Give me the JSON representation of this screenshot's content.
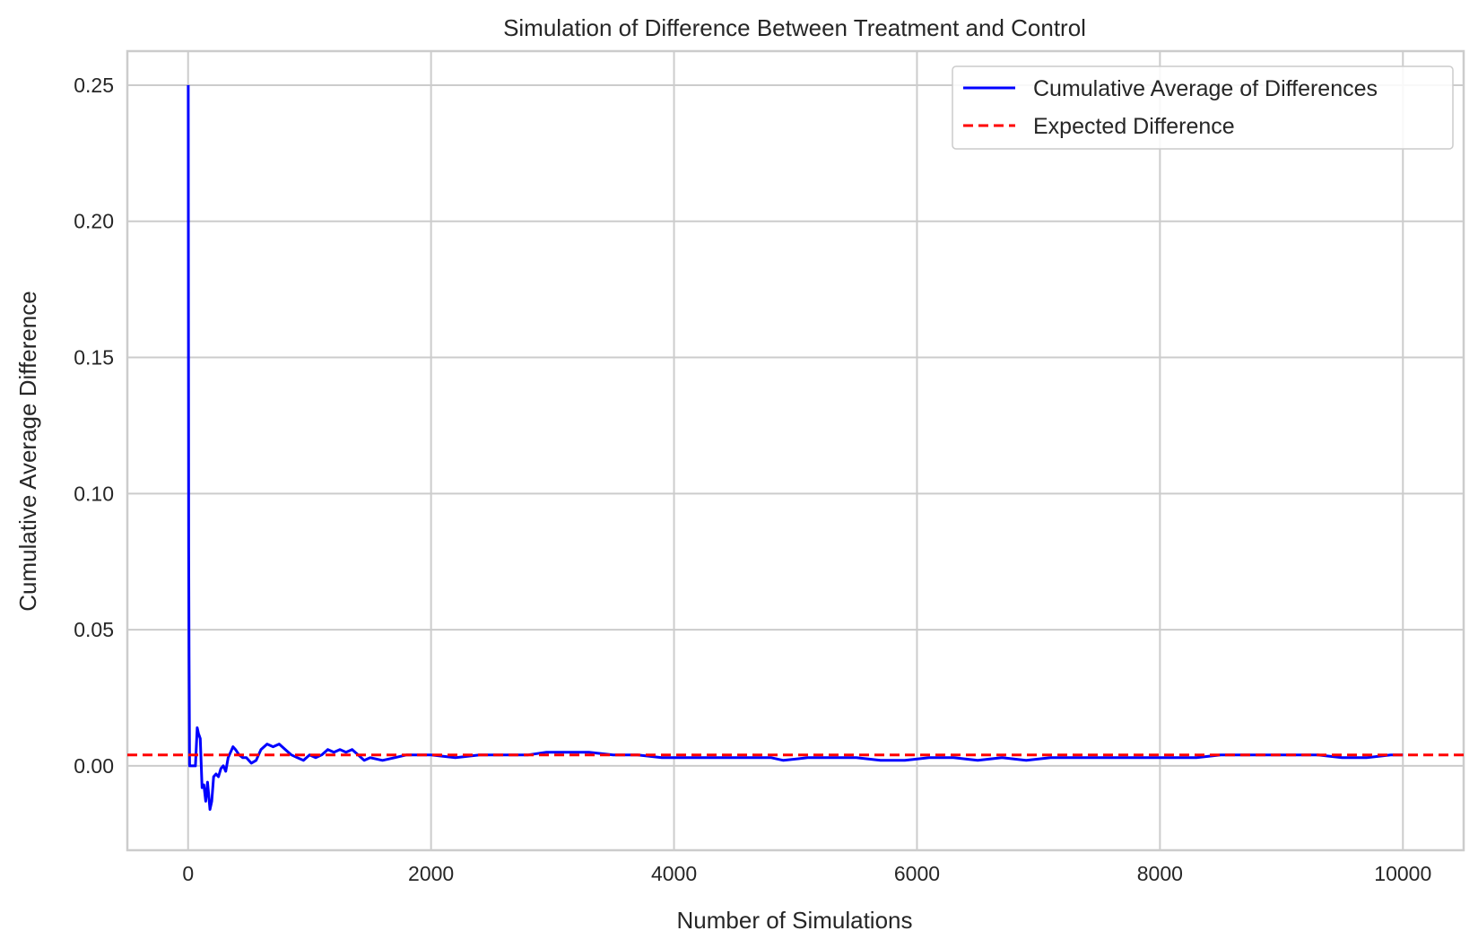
{
  "chart_data": {
    "type": "line",
    "title": "Simulation of Difference Between Treatment and Control",
    "xlabel": "Number of Simulations",
    "ylabel": "Cumulative Average Difference",
    "xlim": [
      -500,
      10500
    ],
    "ylim": [
      -0.031,
      0.2625
    ],
    "xticks": [
      0,
      2000,
      4000,
      6000,
      8000,
      10000
    ],
    "xtick_labels": [
      "0",
      "2000",
      "4000",
      "6000",
      "8000",
      "10000"
    ],
    "yticks": [
      0.0,
      0.05,
      0.1,
      0.15,
      0.2,
      0.25
    ],
    "ytick_labels": [
      "0.00",
      "0.05",
      "0.10",
      "0.15",
      "0.20",
      "0.25"
    ],
    "grid": true,
    "legend_position": "top-right",
    "series": [
      {
        "name": "Cumulative Average of Differences",
        "color": "#0000ff",
        "style": "solid",
        "x": [
          1,
          3,
          5,
          8,
          12,
          20,
          30,
          45,
          60,
          75,
          85,
          100,
          115,
          130,
          145,
          160,
          170,
          180,
          195,
          210,
          230,
          250,
          270,
          290,
          310,
          330,
          350,
          370,
          390,
          420,
          450,
          480,
          520,
          560,
          600,
          650,
          700,
          750,
          800,
          850,
          900,
          950,
          1000,
          1050,
          1100,
          1150,
          1200,
          1250,
          1300,
          1350,
          1400,
          1450,
          1500,
          1600,
          1700,
          1800,
          1900,
          2000,
          2200,
          2400,
          2600,
          2800,
          2950,
          3100,
          3300,
          3500,
          3700,
          3900,
          4000,
          4200,
          4400,
          4600,
          4800,
          4900,
          5100,
          5300,
          5500,
          5700,
          5900,
          6100,
          6300,
          6500,
          6700,
          6900,
          7100,
          7300,
          7500,
          7700,
          7900,
          8100,
          8300,
          8500,
          8700,
          8900,
          9100,
          9300,
          9500,
          9700,
          9900,
          10000
        ],
        "y": [
          0.25,
          0.17,
          0.08,
          0.04,
          0.0,
          0.0,
          0.0,
          0.0,
          0.0,
          0.014,
          0.012,
          0.01,
          -0.008,
          -0.007,
          -0.013,
          -0.006,
          -0.011,
          -0.016,
          -0.013,
          -0.004,
          -0.003,
          -0.004,
          -0.001,
          0.0,
          -0.002,
          0.003,
          0.005,
          0.007,
          0.006,
          0.004,
          0.003,
          0.003,
          0.001,
          0.002,
          0.006,
          0.008,
          0.007,
          0.008,
          0.006,
          0.004,
          0.003,
          0.002,
          0.004,
          0.003,
          0.004,
          0.006,
          0.005,
          0.006,
          0.005,
          0.006,
          0.004,
          0.002,
          0.003,
          0.002,
          0.003,
          0.004,
          0.004,
          0.004,
          0.003,
          0.004,
          0.004,
          0.004,
          0.005,
          0.005,
          0.005,
          0.004,
          0.004,
          0.003,
          0.003,
          0.003,
          0.003,
          0.003,
          0.003,
          0.002,
          0.003,
          0.003,
          0.003,
          0.002,
          0.002,
          0.003,
          0.003,
          0.002,
          0.003,
          0.002,
          0.003,
          0.003,
          0.003,
          0.003,
          0.003,
          0.003,
          0.003,
          0.004,
          0.004,
          0.004,
          0.004,
          0.004,
          0.003,
          0.003,
          0.004,
          0.004
        ]
      },
      {
        "name": "Expected Difference",
        "color": "#ff0000",
        "style": "dashed",
        "y_constant": 0.004
      }
    ]
  }
}
